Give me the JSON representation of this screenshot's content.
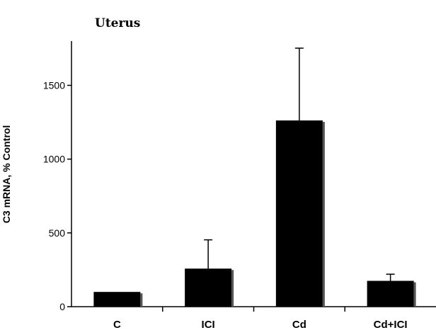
{
  "chart_data": {
    "type": "bar",
    "title": "Uterus",
    "ylabel": "C3 mRNA, % Control",
    "xlabel": "",
    "categories": [
      "C",
      "ICI",
      "Cd",
      "Cd+ICI"
    ],
    "values": [
      100,
      258,
      1262,
      175
    ],
    "error": [
      0,
      195,
      490,
      45
    ],
    "ylim": [
      0,
      1800
    ],
    "yticks": [
      0,
      500,
      1000,
      1500
    ],
    "bar_color": "#000000",
    "grid": false
  }
}
